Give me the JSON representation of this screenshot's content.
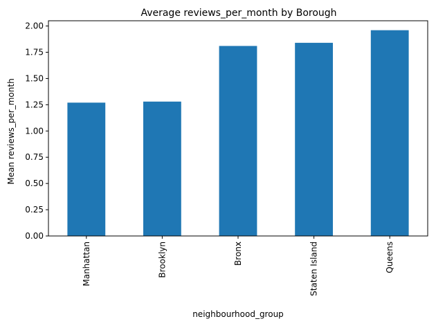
{
  "chart_data": {
    "type": "bar",
    "title": "Average reviews_per_month by Borough",
    "xlabel": "neighbourhood_group",
    "ylabel": "Mean reviews_per_month",
    "categories": [
      "Manhattan",
      "Brooklyn",
      "Bronx",
      "Staten Island",
      "Queens"
    ],
    "values": [
      1.27,
      1.28,
      1.81,
      1.84,
      1.96
    ],
    "ylim": [
      0,
      2.05
    ],
    "yticks": [
      "0.00",
      "0.25",
      "0.50",
      "0.75",
      "1.00",
      "1.25",
      "1.50",
      "1.75",
      "2.00"
    ],
    "bar_color": "#1f77b4",
    "grid": false,
    "legend": "none"
  }
}
